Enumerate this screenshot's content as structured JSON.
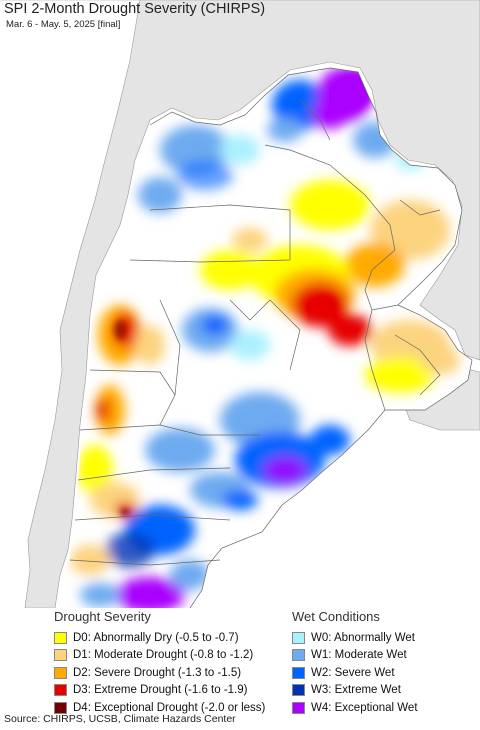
{
  "title": "SPI 2-Month Drought Severity (CHIRPS)",
  "subtitle": "Mar. 6 - May. 5, 2025 [final]",
  "colors": {
    "ocean": "#ffffff",
    "outside_region": "#e4e4e4",
    "no_anomaly": "#ffffff",
    "borders": "#666666"
  },
  "legend": {
    "drought": {
      "title": "Drought Severity",
      "items": [
        {
          "label": "D0: Abnormally Dry (-0.5 to -0.7)",
          "color": "#ffff00"
        },
        {
          "label": "D1: Moderate Drought (-0.8 to -1.2)",
          "color": "#fcd37f"
        },
        {
          "label": "D2: Severe Drought (-1.3 to -1.5)",
          "color": "#ffaa00"
        },
        {
          "label": "D3: Extreme Drought (-1.6 to -1.9)",
          "color": "#e60000"
        },
        {
          "label": "D4: Exceptional Drought (-2.0 or less)",
          "color": "#730000"
        }
      ]
    },
    "wet": {
      "title": "Wet Conditions",
      "items": [
        {
          "label": "W0: Abnormally Wet",
          "color": "#aaf0ff"
        },
        {
          "label": "W1: Moderate Wet",
          "color": "#6eaaf0"
        },
        {
          "label": "W2: Severe Wet",
          "color": "#0064ff"
        },
        {
          "label": "W3: Extreme Wet",
          "color": "#0032b4"
        },
        {
          "label": "W4: Exceptional Wet",
          "color": "#aa00ff"
        }
      ]
    }
  },
  "source": "Source: CHIRPS, UCSB, Climate Hazards Center"
}
